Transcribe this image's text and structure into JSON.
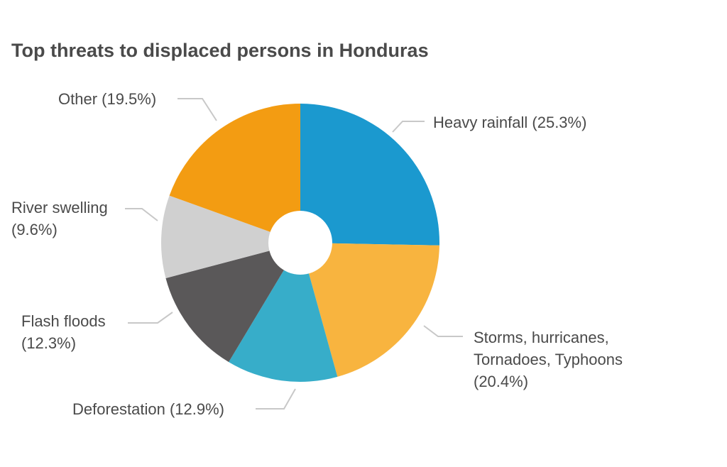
{
  "chart_data": {
    "type": "pie",
    "title": "Top threats to displaced persons in Honduras",
    "slices": [
      {
        "name": "Heavy rainfall",
        "value": 25.3,
        "color": "#1b99cf",
        "label_lines": [
          "Heavy rainfall (25.3%)"
        ]
      },
      {
        "name": "Storms, hurricanes, Tornadoes, Typhoons",
        "value": 20.4,
        "color": "#f8b43f",
        "label_lines": [
          "Storms, hurricanes,",
          "Tornadoes, Typhoons",
          "(20.4%)"
        ]
      },
      {
        "name": "Deforestation",
        "value": 12.9,
        "color": "#37adc9",
        "label_lines": [
          "Deforestation (12.9%)"
        ]
      },
      {
        "name": "Flash floods",
        "value": 12.3,
        "color": "#5a5859",
        "label_lines": [
          "Flash floods",
          "(12.3%)"
        ]
      },
      {
        "name": "River swelling",
        "value": 9.6,
        "color": "#d0d0d0",
        "label_lines": [
          "River swelling",
          "(9.6%)"
        ]
      },
      {
        "name": "Other",
        "value": 19.5,
        "color": "#f39c12",
        "label_lines": [
          "Other (19.5%)"
        ]
      }
    ],
    "donut_hole": true,
    "start_angle": "12 o'clock",
    "direction": "clockwise",
    "legend": "none",
    "leader_line_color": "#c8c8c8"
  }
}
